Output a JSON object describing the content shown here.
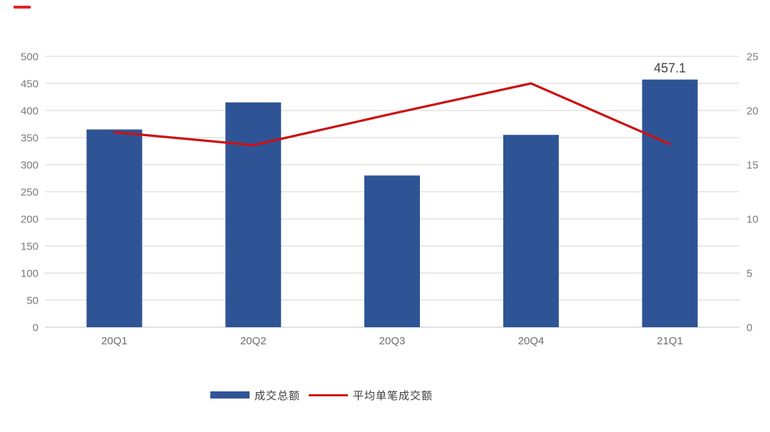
{
  "chart_data": {
    "type": "bar",
    "subtype": "combo-bar-line",
    "title": "",
    "categories": [
      "20Q1",
      "20Q2",
      "20Q3",
      "20Q4",
      "21Q1"
    ],
    "series": [
      {
        "name": "成交总额",
        "type": "bar",
        "axis": "left",
        "color": "#2f5496",
        "values": [
          365,
          415,
          280,
          355,
          457.1
        ]
      },
      {
        "name": "平均单笔成交额",
        "type": "line",
        "axis": "right",
        "color": "#cc1111",
        "values": [
          18,
          16.8,
          19.7,
          22.5,
          16.9
        ]
      }
    ],
    "left_axis": {
      "min": 0,
      "max": 500,
      "step": 50,
      "tick_labels": [
        "0",
        "50",
        "100",
        "150",
        "200",
        "250",
        "300",
        "350",
        "400",
        "450",
        "500"
      ]
    },
    "right_axis": {
      "min": 0,
      "max": 25,
      "step": 5,
      "tick_labels": [
        "0",
        "5",
        "10",
        "15",
        "20",
        "25"
      ]
    },
    "data_labels": [
      {
        "series_index": 0,
        "category_index": 4,
        "text": "457.1"
      }
    ],
    "grid": true,
    "legend_position": "bottom"
  },
  "legend": {
    "items": [
      {
        "label": "成交总额",
        "swatch": "bar",
        "color": "#2f5496"
      },
      {
        "label": "平均单笔成交额",
        "swatch": "line",
        "color": "#cc1111"
      }
    ]
  },
  "colors": {
    "gridline": "#dcdcdc",
    "baseline": "#cfcfcf",
    "axis_text": "#7b7b7b",
    "category_text": "#6e6e6e",
    "data_label_text": "#404040",
    "corner_dash": "#e32222"
  }
}
